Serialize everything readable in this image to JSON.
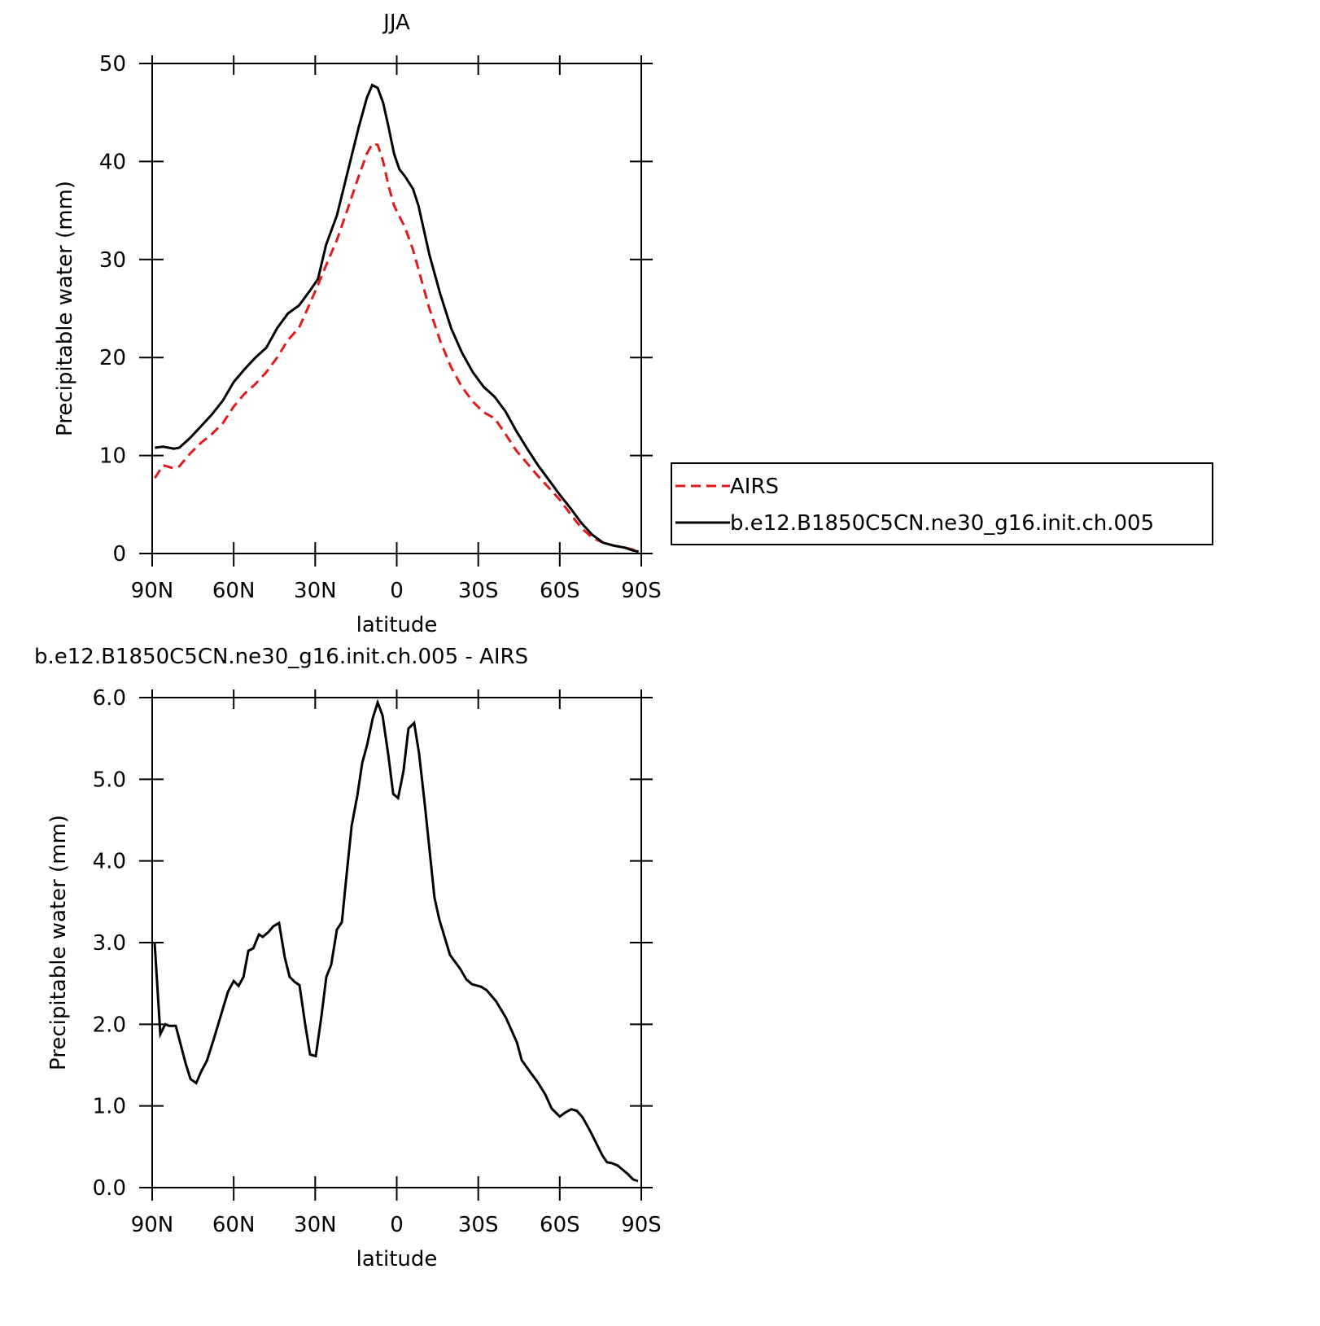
{
  "chart_data": [
    {
      "type": "line",
      "title": "JJA",
      "xlabel": "latitude",
      "ylabel": "Precipitable water (mm)",
      "x": [
        89,
        86,
        82,
        80,
        76,
        72,
        68,
        64,
        60,
        56,
        52,
        48,
        44,
        40,
        36,
        32,
        29,
        26,
        22,
        18,
        14,
        11,
        9,
        7,
        5,
        3,
        1,
        -1,
        -3,
        -6,
        -8,
        -12,
        -16,
        -20,
        -24,
        -28,
        -32,
        -36,
        -40,
        -44,
        -48,
        -52,
        -56,
        -60,
        -64,
        -68,
        -72,
        -76,
        -80,
        -84,
        -87,
        -89
      ],
      "series": [
        {
          "name": "AIRS",
          "color": "#e31a1c",
          "style": "dashed",
          "values": [
            7.7,
            9.0,
            8.7,
            8.9,
            10.2,
            11.3,
            12.2,
            13.3,
            15.0,
            16.3,
            17.3,
            18.5,
            20.0,
            21.8,
            23.0,
            25.5,
            27.4,
            29.4,
            32.0,
            35.2,
            38.5,
            40.8,
            41.8,
            41.7,
            40.0,
            37.5,
            35.5,
            34.4,
            33.3,
            31.0,
            29.0,
            25.0,
            21.7,
            19.0,
            17.0,
            15.5,
            14.4,
            13.8,
            12.2,
            10.5,
            9.2,
            7.9,
            6.7,
            5.5,
            4.0,
            2.6,
            1.6,
            1.1,
            0.8,
            0.6,
            0.4,
            0.2
          ]
        },
        {
          "name": "b.e12.B1850C5CN.ne30_g16.init.ch.005",
          "color": "#000000",
          "style": "solid",
          "values": [
            10.8,
            10.9,
            10.7,
            10.8,
            11.8,
            13.0,
            14.2,
            15.6,
            17.5,
            18.8,
            20.0,
            21.0,
            23.0,
            24.5,
            25.3,
            26.8,
            28.0,
            31.5,
            34.5,
            39.0,
            43.5,
            46.5,
            47.8,
            47.5,
            46.0,
            43.5,
            40.8,
            39.2,
            38.5,
            37.2,
            35.5,
            30.5,
            26.5,
            23.0,
            20.5,
            18.5,
            17.0,
            16.0,
            14.5,
            12.5,
            10.7,
            9.0,
            7.5,
            6.0,
            4.6,
            3.1,
            1.9,
            1.1,
            0.8,
            0.6,
            0.3,
            0.2
          ]
        }
      ],
      "xlim": [
        90,
        -90
      ],
      "xticks": [
        {
          "value": 90,
          "label": "90N"
        },
        {
          "value": 60,
          "label": "60N"
        },
        {
          "value": 30,
          "label": "30N"
        },
        0,
        {
          "value": -30,
          "label": "30S"
        },
        {
          "value": -60,
          "label": "60S"
        },
        {
          "value": -90,
          "label": "90S"
        }
      ],
      "ylim": [
        0,
        50
      ],
      "yticks": [
        0,
        10,
        20,
        30,
        40,
        50
      ],
      "legend": "right"
    },
    {
      "type": "line",
      "title": "b.e12.B1850C5CN.ne30_g16.init.ch.005 - AIRS",
      "xlabel": "latitude",
      "ylabel": "Precipitable water (mm)",
      "x": [
        89.1,
        87,
        85.2,
        83.7,
        81.3,
        77.7,
        75.9,
        73.8,
        72,
        69.9,
        67.5,
        62.1,
        60,
        58.2,
        56.4,
        54.6,
        52.8,
        50.7,
        49.3,
        47.2,
        45.4,
        43.3,
        41.2,
        39.4,
        37.6,
        35.8,
        33.7,
        31.9,
        29.8,
        27.7,
        25.9,
        24.1,
        22,
        20.2,
        18.4,
        16.6,
        14.5,
        12.7,
        10.9,
        8.8,
        7,
        5.2,
        3.1,
        1.3,
        -0.5,
        -2.5,
        -4.3,
        -6.4,
        -8.2,
        -10.3,
        -13.9,
        -15.7,
        -19.6,
        -23.5,
        -25.6,
        -27.7,
        -31,
        -33,
        -36.6,
        -40.2,
        -44.2,
        -46,
        -49,
        -51.7,
        -54.7,
        -57,
        -60,
        -62.1,
        -64.2,
        -66.3,
        -68.4,
        -71.4,
        -75.6,
        -77.4,
        -79.2,
        -81.3,
        -84.9,
        -87,
        -88.8
      ],
      "values": [
        3.0,
        1.88,
        2.0,
        1.98,
        1.98,
        1.52,
        1.33,
        1.28,
        1.42,
        1.55,
        1.8,
        2.4,
        2.53,
        2.47,
        2.58,
        2.9,
        2.93,
        3.1,
        3.07,
        3.13,
        3.2,
        3.24,
        2.82,
        2.58,
        2.52,
        2.48,
        2.0,
        1.63,
        1.61,
        2.1,
        2.58,
        2.73,
        3.16,
        3.25,
        3.85,
        4.43,
        4.8,
        5.2,
        5.42,
        5.75,
        5.94,
        5.78,
        5.3,
        4.82,
        4.77,
        5.1,
        5.62,
        5.69,
        5.32,
        4.7,
        3.55,
        3.28,
        2.85,
        2.67,
        2.55,
        2.49,
        2.46,
        2.42,
        2.28,
        2.08,
        1.78,
        1.56,
        1.42,
        1.3,
        1.14,
        0.97,
        0.87,
        0.92,
        0.96,
        0.94,
        0.86,
        0.68,
        0.4,
        0.31,
        0.3,
        0.27,
        0.17,
        0.1,
        0.08
      ],
      "color": "#000000",
      "xlim": [
        90,
        -90
      ],
      "xticks": [
        {
          "value": 90,
          "label": "90N"
        },
        {
          "value": 60,
          "label": "60N"
        },
        {
          "value": 30,
          "label": "30N"
        },
        0,
        {
          "value": -30,
          "label": "30S"
        },
        {
          "value": -60,
          "label": "60S"
        },
        {
          "value": -90,
          "label": "90S"
        }
      ],
      "ylim": [
        0,
        6
      ],
      "yticks": [
        {
          "value": 0,
          "label": "0.0"
        },
        {
          "value": 1,
          "label": "1.0"
        },
        {
          "value": 2,
          "label": "2.0"
        },
        {
          "value": 3,
          "label": "3.0"
        },
        {
          "value": 4,
          "label": "4.0"
        },
        {
          "value": 5,
          "label": "5.0"
        },
        {
          "value": 6,
          "label": "6.0"
        }
      ]
    }
  ]
}
